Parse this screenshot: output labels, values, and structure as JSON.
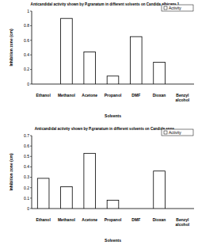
{
  "chart_data": [
    {
      "type": "bar",
      "title": "Anticandidal activity shown by P.granatum in different solvents on Candida albicans 1",
      "x_label": "Solvents",
      "y_label": "Inhibition zone (cm)",
      "categories": [
        "Ethanol",
        "Methanol",
        "Acetone",
        "Propanol",
        "DMF",
        "Dioxan",
        "Benzyl alcohol"
      ],
      "series": [
        {
          "name": "Activity",
          "color": "#ffffff",
          "values": [
            0,
            0.9,
            0.44,
            0.11,
            0.65,
            0.3,
            0
          ]
        }
      ],
      "ylim": [
        0,
        1
      ],
      "yticks": [
        0,
        0.2,
        0.4,
        0.6,
        0.8,
        1
      ],
      "legend": "upper right",
      "grid": false
    },
    {
      "type": "bar",
      "title": "Anticandidal activity shown by P.granatum in different solvents on Candida spps.",
      "x_label": "Solvents",
      "y_label": "Inhibition zone (cm)",
      "categories": [
        "Ethanol",
        "Methanol",
        "Acetone",
        "Propanol",
        "DMF",
        "Dioxan",
        "Benzyl alcohol"
      ],
      "series": [
        {
          "name": "Activity",
          "color": "#ffffff",
          "values": [
            0.29,
            0.21,
            0.53,
            0.08,
            0,
            0.36,
            0
          ]
        }
      ],
      "ylim": [
        0,
        0.7
      ],
      "yticks": [
        0,
        0.1,
        0.2,
        0.3,
        0.4,
        0.5,
        0.6,
        0.7
      ],
      "legend": "upper right",
      "grid": false
    }
  ]
}
